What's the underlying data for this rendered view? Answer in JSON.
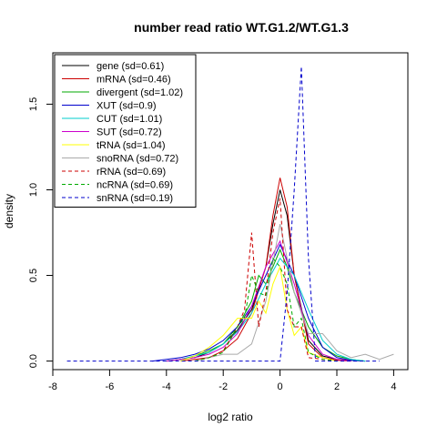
{
  "chart_data": {
    "type": "line",
    "title": "number read ratio WT.G1.2/WT.G1.3",
    "xlabel": "log2 ratio",
    "ylabel": "density",
    "xlim": [
      -8,
      4.5
    ],
    "ylim": [
      -0.05,
      1.8
    ],
    "xticks": [
      -8,
      -6,
      -4,
      -2,
      0,
      2,
      4
    ],
    "yticks": [
      0.0,
      0.5,
      1.0,
      1.5
    ],
    "legend_position": "top-left",
    "grid": false,
    "series": [
      {
        "name": "gene (sd=0.61)",
        "color": "#000000",
        "dash": "solid",
        "x": [
          -4,
          -3,
          -2.5,
          -2,
          -1.5,
          -1,
          -0.5,
          -0.25,
          0,
          0.25,
          0.5,
          1,
          1.5,
          2,
          2.5,
          3
        ],
        "y": [
          0,
          0.02,
          0.05,
          0.1,
          0.18,
          0.3,
          0.55,
          0.8,
          1.0,
          0.85,
          0.5,
          0.12,
          0.03,
          0.01,
          0.005,
          0
        ]
      },
      {
        "name": "mRNA (sd=0.46)",
        "color": "#cc0000",
        "dash": "solid",
        "x": [
          -3.5,
          -2.5,
          -2,
          -1.5,
          -1,
          -0.5,
          -0.25,
          0,
          0.25,
          0.5,
          1,
          1.5,
          2,
          2.5
        ],
        "y": [
          0,
          0.02,
          0.06,
          0.13,
          0.28,
          0.55,
          0.85,
          1.07,
          0.9,
          0.5,
          0.1,
          0.02,
          0.005,
          0
        ]
      },
      {
        "name": "divergent (sd=1.02)",
        "color": "#00aa00",
        "dash": "solid",
        "x": [
          -4,
          -3.5,
          -3,
          -2.5,
          -2,
          -1.5,
          -1,
          -0.75,
          -0.5,
          -0.25,
          0,
          0.25,
          0.5,
          1,
          1.5,
          2,
          2.5,
          3
        ],
        "y": [
          0,
          0.01,
          0.03,
          0.06,
          0.1,
          0.2,
          0.35,
          0.5,
          0.45,
          0.55,
          0.65,
          0.55,
          0.4,
          0.2,
          0.08,
          0.03,
          0.01,
          0
        ]
      },
      {
        "name": "XUT (sd=0.9)",
        "color": "#0000cc",
        "dash": "solid",
        "x": [
          -4.5,
          -4,
          -3.5,
          -3,
          -2.5,
          -2,
          -1.5,
          -1,
          -0.5,
          0,
          0.5,
          1,
          1.5,
          2,
          2.5,
          3
        ],
        "y": [
          0,
          0.01,
          0.02,
          0.04,
          0.07,
          0.12,
          0.2,
          0.32,
          0.5,
          0.68,
          0.5,
          0.25,
          0.08,
          0.02,
          0.005,
          0
        ]
      },
      {
        "name": "CUT (sd=1.01)",
        "color": "#00cccc",
        "dash": "solid",
        "x": [
          -4,
          -3.5,
          -3,
          -2.5,
          -2,
          -1.5,
          -1,
          -0.5,
          0,
          0.5,
          1,
          1.5,
          2,
          2.5,
          3
        ],
        "y": [
          0,
          0.01,
          0.03,
          0.05,
          0.1,
          0.17,
          0.28,
          0.45,
          0.6,
          0.5,
          0.3,
          0.12,
          0.04,
          0.01,
          0
        ]
      },
      {
        "name": "SUT (sd=0.72)",
        "color": "#cc00cc",
        "dash": "solid",
        "x": [
          -4,
          -3.5,
          -3,
          -2.5,
          -2,
          -1.5,
          -1,
          -0.5,
          0,
          0.5,
          1,
          1.5,
          2,
          2.5
        ],
        "y": [
          0,
          0.01,
          0.02,
          0.04,
          0.08,
          0.16,
          0.32,
          0.55,
          0.7,
          0.45,
          0.15,
          0.04,
          0.01,
          0
        ]
      },
      {
        "name": "tRNA (sd=1.04)",
        "color": "#ffff00",
        "dash": "solid",
        "x": [
          -3.5,
          -3,
          -2.5,
          -2,
          -1.5,
          -1,
          -0.75,
          -0.5,
          -0.25,
          0,
          0.25,
          0.5,
          0.75,
          1,
          1.5,
          2
        ],
        "y": [
          0,
          0.03,
          0.08,
          0.15,
          0.25,
          0.25,
          0.35,
          0.28,
          0.45,
          0.55,
          0.3,
          0.15,
          0.2,
          0.05,
          0.02,
          0
        ]
      },
      {
        "name": "snoRNA (sd=0.72)",
        "color": "#aaaaaa",
        "dash": "solid",
        "x": [
          -3,
          -2.5,
          -2,
          -1.5,
          -1,
          -0.5,
          0,
          0.5,
          1,
          1.5,
          2,
          2.5,
          3,
          3.5,
          4
        ],
        "y": [
          0,
          0.02,
          0.04,
          0.04,
          0.1,
          0.35,
          0.8,
          0.4,
          0.16,
          0.16,
          0.06,
          0.02,
          0.04,
          0.01,
          0.04
        ]
      },
      {
        "name": "rRNA (sd=0.69)",
        "color": "#cc0000",
        "dash": "dashed",
        "x": [
          -3,
          -2.5,
          -2,
          -1.5,
          -1.25,
          -1,
          -0.75,
          -0.5,
          -0.25,
          0,
          0.25,
          0.5,
          0.75,
          1,
          1.5,
          2
        ],
        "y": [
          0,
          0.02,
          0.06,
          0.2,
          0.3,
          0.75,
          0.2,
          0.4,
          0.75,
          0.95,
          0.3,
          0.2,
          0.2,
          0.02,
          0.01,
          0
        ]
      },
      {
        "name": "ncRNA (sd=0.69)",
        "color": "#00aa00",
        "dash": "dashed",
        "x": [
          -3,
          -2.5,
          -2,
          -1.5,
          -1.25,
          -1,
          -0.75,
          -0.5,
          -0.25,
          0,
          0.25,
          0.5,
          0.75,
          1,
          1.5,
          2
        ],
        "y": [
          0,
          0.02,
          0.05,
          0.2,
          0.25,
          0.5,
          0.4,
          0.38,
          0.6,
          0.55,
          0.45,
          0.2,
          0.25,
          0.05,
          0.01,
          0
        ]
      },
      {
        "name": "snRNA (sd=0.19)",
        "color": "#0000cc",
        "dash": "dashed",
        "x": [
          -7.5,
          -1,
          0,
          0.25,
          0.5,
          0.75,
          1,
          1.25,
          2,
          3.5
        ],
        "y": [
          0,
          0,
          0,
          0.4,
          1.0,
          1.72,
          0.6,
          0,
          0,
          0
        ]
      }
    ]
  }
}
